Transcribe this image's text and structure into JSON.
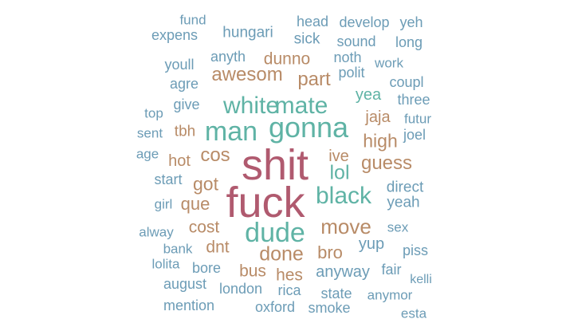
{
  "palette": {
    "maroon": "#b05a6f",
    "teal": "#5fb3a5",
    "brown": "#b88b67",
    "blue": "#6c9cb6"
  },
  "words": [
    {
      "text": "shit",
      "tone": "maroon"
    },
    {
      "text": "fuck",
      "tone": "maroon"
    },
    {
      "text": "gonna",
      "tone": "teal"
    },
    {
      "text": "man",
      "tone": "teal"
    },
    {
      "text": "dude",
      "tone": "teal"
    },
    {
      "text": "white",
      "tone": "teal"
    },
    {
      "text": "mate",
      "tone": "teal"
    },
    {
      "text": "black",
      "tone": "teal"
    },
    {
      "text": "move",
      "tone": "brown"
    },
    {
      "text": "done",
      "tone": "brown"
    },
    {
      "text": "awesom",
      "tone": "brown"
    },
    {
      "text": "part",
      "tone": "brown"
    },
    {
      "text": "lol",
      "tone": "teal"
    },
    {
      "text": "guess",
      "tone": "brown"
    },
    {
      "text": "cos",
      "tone": "brown"
    },
    {
      "text": "high",
      "tone": "brown"
    },
    {
      "text": "got",
      "tone": "brown"
    },
    {
      "text": "bro",
      "tone": "brown"
    },
    {
      "text": "hes",
      "tone": "brown"
    },
    {
      "text": "bus",
      "tone": "brown"
    },
    {
      "text": "que",
      "tone": "brown"
    },
    {
      "text": "dnt",
      "tone": "brown"
    },
    {
      "text": "cost",
      "tone": "brown"
    },
    {
      "text": "dunno",
      "tone": "brown"
    },
    {
      "text": "jaja",
      "tone": "brown"
    },
    {
      "text": "hot",
      "tone": "brown"
    },
    {
      "text": "tbh",
      "tone": "brown"
    },
    {
      "text": "ive",
      "tone": "brown"
    },
    {
      "text": "anyway",
      "tone": "blue"
    },
    {
      "text": "yea",
      "tone": "teal"
    },
    {
      "text": "yup",
      "tone": "blue"
    },
    {
      "text": "direct",
      "tone": "blue"
    },
    {
      "text": "yeah",
      "tone": "blue"
    },
    {
      "text": "give",
      "tone": "blue"
    },
    {
      "text": "agre",
      "tone": "blue"
    },
    {
      "text": "start",
      "tone": "blue"
    },
    {
      "text": "bore",
      "tone": "blue"
    },
    {
      "text": "rica",
      "tone": "blue"
    },
    {
      "text": "fair",
      "tone": "blue"
    },
    {
      "text": "london",
      "tone": "blue"
    },
    {
      "text": "state",
      "tone": "blue"
    },
    {
      "text": "smoke",
      "tone": "blue"
    },
    {
      "text": "oxford",
      "tone": "blue"
    },
    {
      "text": "mention",
      "tone": "blue"
    },
    {
      "text": "august",
      "tone": "blue"
    },
    {
      "text": "lolita",
      "tone": "blue"
    },
    {
      "text": "bank",
      "tone": "blue"
    },
    {
      "text": "alway",
      "tone": "blue"
    },
    {
      "text": "girl",
      "tone": "blue"
    },
    {
      "text": "age",
      "tone": "blue"
    },
    {
      "text": "sent",
      "tone": "blue"
    },
    {
      "text": "top",
      "tone": "blue"
    },
    {
      "text": "youll",
      "tone": "blue"
    },
    {
      "text": "expens",
      "tone": "blue"
    },
    {
      "text": "fund",
      "tone": "blue"
    },
    {
      "text": "hungari",
      "tone": "blue"
    },
    {
      "text": "anyth",
      "tone": "blue"
    },
    {
      "text": "head",
      "tone": "blue"
    },
    {
      "text": "sick",
      "tone": "blue"
    },
    {
      "text": "develop",
      "tone": "blue"
    },
    {
      "text": "yeh",
      "tone": "blue"
    },
    {
      "text": "sound",
      "tone": "blue"
    },
    {
      "text": "long",
      "tone": "blue"
    },
    {
      "text": "noth",
      "tone": "blue"
    },
    {
      "text": "polit",
      "tone": "blue"
    },
    {
      "text": "work",
      "tone": "blue"
    },
    {
      "text": "coupl",
      "tone": "blue"
    },
    {
      "text": "three",
      "tone": "blue"
    },
    {
      "text": "futur",
      "tone": "blue"
    },
    {
      "text": "joel",
      "tone": "blue"
    },
    {
      "text": "sex",
      "tone": "blue"
    },
    {
      "text": "piss",
      "tone": "blue"
    },
    {
      "text": "kelli",
      "tone": "blue"
    },
    {
      "text": "anymor",
      "tone": "blue"
    },
    {
      "text": "esta",
      "tone": "blue"
    }
  ]
}
